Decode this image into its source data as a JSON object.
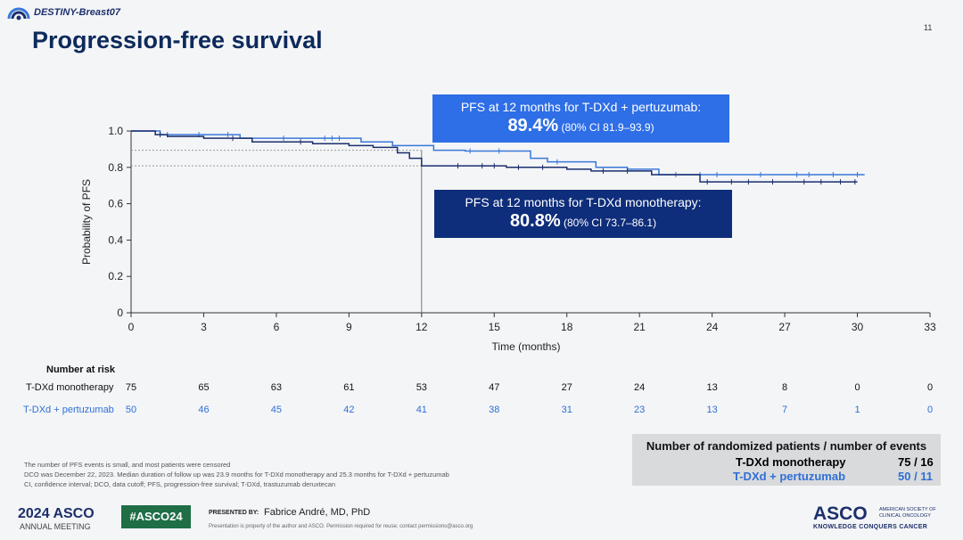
{
  "header": {
    "trial_name": "DESTINY-Breast07",
    "slide_number": "11",
    "title": "Progression-free survival"
  },
  "colors": {
    "monotherapy": "#1a2f6d",
    "pertuzumab": "#3a78d8",
    "box_pertuzumab": "#2e6ee6",
    "box_monotherapy": "#0e2d7a"
  },
  "callouts": {
    "pertuzumab": {
      "line1": "PFS at 12 months for T-DXd + pertuzumab:",
      "value": "89.4%",
      "ci": "(80% CI 81.9–93.9)"
    },
    "monotherapy": {
      "line1": "PFS at 12 months for T-DXd monotherapy:",
      "value": "80.8%",
      "ci": "(80% CI 73.7–86.1)"
    }
  },
  "chart_data": {
    "type": "line",
    "xlabel": "Time (months)",
    "ylabel": "Probability of PFS",
    "xlim": [
      0,
      33
    ],
    "ylim": [
      0,
      1.0
    ],
    "x_ticks": [
      0,
      3,
      6,
      9,
      12,
      15,
      18,
      21,
      24,
      27,
      30,
      33
    ],
    "y_ticks": [
      "0",
      "0.2",
      "0.4",
      "0.6",
      "0.8",
      "1.0"
    ],
    "reference": {
      "x": 12,
      "y_values": [
        0.894,
        0.808
      ]
    },
    "series": [
      {
        "key": "pertuzumab",
        "name": "T-DXd + pertuzumab",
        "color": "#3a78d8",
        "x": [
          0,
          1.2,
          1.8,
          4.5,
          6.8,
          9.5,
          10.8,
          12.5,
          13.8,
          16.5,
          17.2,
          19.2,
          20.5,
          21.8,
          30.3
        ],
        "y": [
          1.0,
          0.98,
          0.98,
          0.96,
          0.96,
          0.94,
          0.92,
          0.894,
          0.89,
          0.85,
          0.83,
          0.8,
          0.79,
          0.76,
          0.76
        ],
        "censor_x": [
          1.5,
          2.8,
          4.0,
          6.3,
          8.0,
          8.3,
          8.6,
          14.0,
          15.2,
          17.6,
          22.5,
          23.5,
          24.2,
          26.0,
          27.5,
          28.0,
          29.0,
          30.0
        ]
      },
      {
        "key": "monotherapy",
        "name": "T-DXd monotherapy",
        "color": "#1a2f6d",
        "x": [
          0,
          1.0,
          1.5,
          3.0,
          5.0,
          7.5,
          9.0,
          10.0,
          11.0,
          11.5,
          12.0,
          15.5,
          18.0,
          19.0,
          21.5,
          23.5,
          30.0
        ],
        "y": [
          1.0,
          0.98,
          0.97,
          0.96,
          0.94,
          0.93,
          0.92,
          0.91,
          0.88,
          0.85,
          0.808,
          0.8,
          0.79,
          0.78,
          0.76,
          0.72,
          0.72
        ],
        "censor_x": [
          1.2,
          4.2,
          7.0,
          13.5,
          14.5,
          15.0,
          16.0,
          17.0,
          19.5,
          20.5,
          23.8,
          24.8,
          25.5,
          26.5,
          27.8,
          28.5,
          29.3,
          29.9
        ]
      }
    ]
  },
  "risk_table": {
    "header": "Number at risk",
    "rows": [
      {
        "label": "T-DXd monotherapy",
        "color": "#111111",
        "values": [
          "75",
          "65",
          "63",
          "61",
          "53",
          "47",
          "27",
          "24",
          "13",
          "8",
          "0",
          "0"
        ]
      },
      {
        "label": "T-DXd + pertuzumab",
        "color": "#2f6fd6",
        "values": [
          "50",
          "46",
          "45",
          "42",
          "41",
          "38",
          "31",
          "23",
          "13",
          "7",
          "1",
          "0"
        ]
      }
    ]
  },
  "summary": {
    "title": "Number of randomized patients / number of events",
    "rows": [
      {
        "label": "T-DXd monotherapy",
        "value": "75 / 16",
        "color": "#111111"
      },
      {
        "label": "T-DXd + pertuzumab",
        "value": "50 / 11",
        "color": "#2f6fd6"
      }
    ]
  },
  "footnotes": [
    "The number of PFS events is small, and most patients were censored",
    "DCO was December 22, 2023. Median duration of follow up was 23.9 months for T-DXd monotherapy and 25.3 months for T-DXd + pertuzumab",
    "CI, confidence interval; DCO, data cutoff; PFS, progression-free survival; T-DXd, trastuzumab deruxtecan"
  ],
  "footer": {
    "meeting_logo": "2024 ASCO",
    "meeting_sub": "ANNUAL MEETING",
    "hashtag": "#ASCO24",
    "presented_label": "PRESENTED BY:",
    "presenter": "Fabrice André, MD, PhD",
    "property_note": "Presentation is property of the author and ASCO. Permission required for reuse; contact permissions@asco.org",
    "asco_logo": "ASCO",
    "asco_org": "AMERICAN SOCIETY OF CLINICAL ONCOLOGY",
    "asco_tagline": "KNOWLEDGE CONQUERS CANCER"
  }
}
